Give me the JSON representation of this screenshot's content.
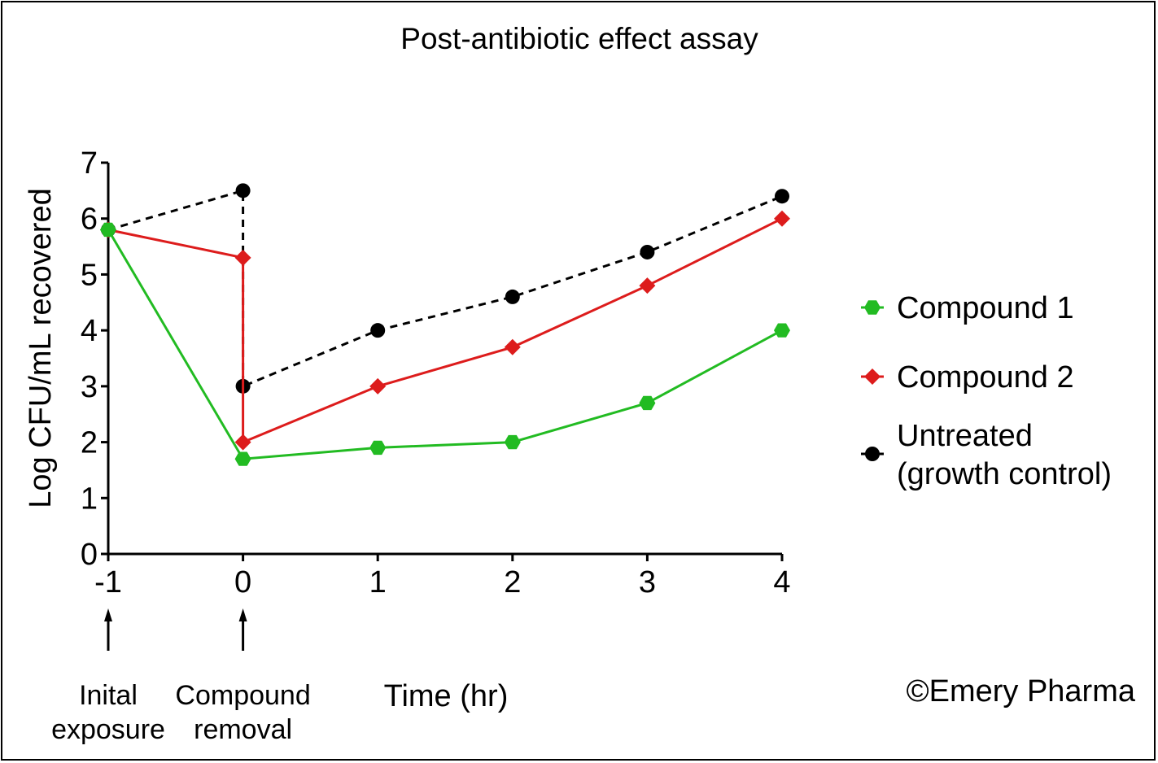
{
  "chart_data": {
    "type": "line",
    "title": "Post-antibiotic effect assay",
    "xlabel": "Time (hr)",
    "ylabel": "Log CFU/mL recovered",
    "xlim": [
      -1,
      4
    ],
    "ylim": [
      0,
      7
    ],
    "xticks": [
      "-1",
      "0",
      "1",
      "2",
      "3",
      "4"
    ],
    "yticks": [
      "0",
      "1",
      "2",
      "3",
      "4",
      "5",
      "6",
      "7"
    ],
    "grid": false,
    "legend_position": "right",
    "series": [
      {
        "name": "Compound 1",
        "color": "#22bb22",
        "marker": "hexagon",
        "line_style": "solid",
        "points": [
          [
            -1,
            5.8
          ],
          [
            0,
            1.7
          ],
          [
            1,
            1.9
          ],
          [
            2,
            2.0
          ],
          [
            3,
            2.7
          ],
          [
            4,
            4.0
          ]
        ]
      },
      {
        "name": "Compound 2",
        "color": "#dd1c1c",
        "marker": "diamond",
        "line_style": "solid",
        "points": [
          [
            -1,
            5.8
          ],
          [
            0,
            5.3
          ],
          [
            0,
            2.0
          ],
          [
            1,
            3.0
          ],
          [
            2,
            3.7
          ],
          [
            3,
            4.8
          ],
          [
            4,
            6.0
          ]
        ]
      },
      {
        "name": "Untreated\n(growth control)",
        "name_lines": [
          "Untreated",
          "(growth control)"
        ],
        "color": "#000000",
        "marker": "circle",
        "line_style": "dashed",
        "points": [
          [
            -1,
            5.8
          ],
          [
            0,
            6.5
          ],
          [
            0,
            3.0
          ],
          [
            1,
            4.0
          ],
          [
            2,
            4.6
          ],
          [
            3,
            5.4
          ],
          [
            4,
            6.4
          ]
        ]
      }
    ],
    "annotations": [
      {
        "text_lines": [
          "Inital",
          "exposure"
        ],
        "x": -1,
        "arrow": "up"
      },
      {
        "text_lines": [
          "Compound",
          "removal"
        ],
        "x": 0,
        "arrow": "up"
      }
    ]
  },
  "copyright": "©Emery Pharma"
}
